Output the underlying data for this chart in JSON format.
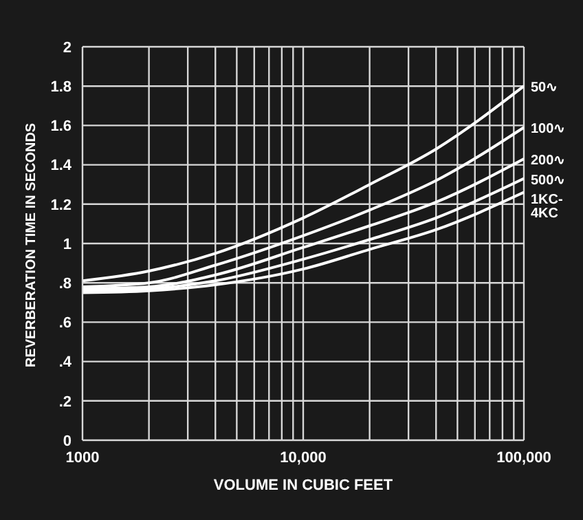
{
  "chart_data": {
    "type": "line",
    "xlabel": "VOLUME IN CUBIC FEET",
    "ylabel": "REVERBERATION TIME IN SECONDS",
    "x": [
      1000,
      2000,
      4000,
      10000,
      20000,
      40000,
      100000
    ],
    "series": [
      {
        "name": "50∿",
        "color": "#ffffff",
        "values": [
          0.81,
          0.86,
          0.95,
          1.13,
          1.3,
          1.48,
          1.8
        ]
      },
      {
        "name": "100∿",
        "color": "#ffffff",
        "values": [
          0.78,
          0.8,
          0.89,
          1.04,
          1.17,
          1.32,
          1.59
        ]
      },
      {
        "name": "200∿",
        "color": "#ffffff",
        "values": [
          0.77,
          0.78,
          0.84,
          0.98,
          1.09,
          1.21,
          1.43
        ]
      },
      {
        "name": "500∿",
        "color": "#ffffff",
        "values": [
          0.76,
          0.77,
          0.81,
          0.92,
          1.02,
          1.13,
          1.33
        ]
      },
      {
        "name": "1KC-4KC",
        "color": "#ffffff",
        "values": [
          0.75,
          0.76,
          0.79,
          0.87,
          0.97,
          1.07,
          1.26
        ]
      }
    ],
    "xlim": [
      1000,
      100000
    ],
    "xticks": [
      {
        "value": 1000,
        "label": "1000"
      },
      {
        "value": 2000,
        "label": null
      },
      {
        "value": 3000,
        "label": null
      },
      {
        "value": 4000,
        "label": null
      },
      {
        "value": 5000,
        "label": null
      },
      {
        "value": 6000,
        "label": null
      },
      {
        "value": 7000,
        "label": null
      },
      {
        "value": 8000,
        "label": null
      },
      {
        "value": 9000,
        "label": null
      },
      {
        "value": 10000,
        "label": "10,000"
      },
      {
        "value": 20000,
        "label": null
      },
      {
        "value": 30000,
        "label": null
      },
      {
        "value": 40000,
        "label": null
      },
      {
        "value": 50000,
        "label": null
      },
      {
        "value": 60000,
        "label": null
      },
      {
        "value": 70000,
        "label": null
      },
      {
        "value": 80000,
        "label": null
      },
      {
        "value": 90000,
        "label": null
      },
      {
        "value": 100000,
        "label": "100,000"
      }
    ],
    "ylim": [
      0,
      2
    ],
    "yticks": [
      0,
      {
        "value": 0.2,
        "label": ".2"
      },
      {
        "value": 0.4,
        "label": ".4"
      },
      {
        "value": 0.6,
        "label": ".6"
      },
      {
        "value": 0.8,
        "label": ".8"
      },
      1,
      1.2,
      1.4,
      1.6,
      1.8,
      2
    ],
    "log": "x",
    "grid": true,
    "legend": false,
    "marker": "none",
    "line_style": "solid"
  }
}
